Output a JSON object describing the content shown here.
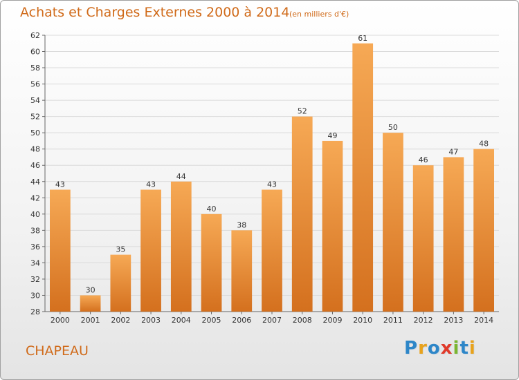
{
  "header": {
    "title": "Achats et Charges Externes 2000 à 2014",
    "unit": "(en milliers d'€)"
  },
  "footer": {
    "commune": "CHAPEAU",
    "logo_text": "Proxiti",
    "logo_letter_colors": [
      "#2d86c8",
      "#e8a21c",
      "#2d86c8",
      "#e03a2a",
      "#7bb531",
      "#2d86c8",
      "#e8a21c"
    ]
  },
  "colors": {
    "bar_light": "#f6a955",
    "bar_dark": "#d4701e",
    "grid": "#dadada",
    "axis": "#666666",
    "text": "#333333"
  },
  "chart_data": {
    "type": "bar",
    "title": "Achats et Charges Externes 2000 à 2014",
    "subtitle": "(en milliers d'€)",
    "xlabel": "",
    "ylabel": "",
    "categories": [
      "2000",
      "2001",
      "2002",
      "2003",
      "2004",
      "2005",
      "2006",
      "2007",
      "2008",
      "2009",
      "2010",
      "2011",
      "2012",
      "2013",
      "2014"
    ],
    "values": [
      43,
      30,
      35,
      43,
      44,
      40,
      38,
      43,
      52,
      49,
      61,
      50,
      46,
      47,
      48
    ],
    "ylim": [
      28,
      62
    ],
    "yticks": [
      28,
      30,
      32,
      34,
      36,
      38,
      40,
      42,
      44,
      46,
      48,
      50,
      52,
      54,
      56,
      58,
      60,
      62
    ],
    "grid": true,
    "legend": "none",
    "data_labels": true
  }
}
